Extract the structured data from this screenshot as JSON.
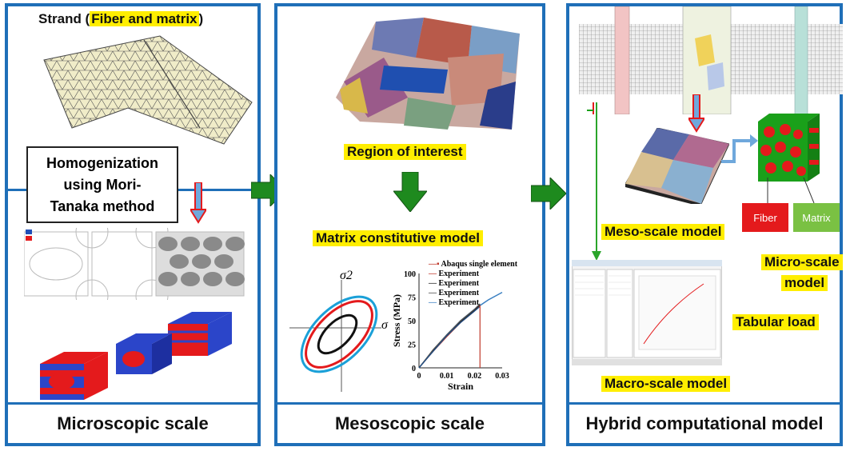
{
  "panels": {
    "left": {
      "footer": "Microscopic scale",
      "strand_prefix": "Strand (",
      "strand_highlight": "Fiber and matrix",
      "strand_suffix": ")",
      "homogenization": [
        "Homogenization",
        "using Mori-",
        "Tanaka method"
      ]
    },
    "middle": {
      "footer": "Mesoscopic scale",
      "region_label": "Region of interest",
      "matrix_label": "Matrix constitutive model"
    },
    "right": {
      "footer": "Hybrid computational model",
      "meso_label": "Meso-scale model",
      "micro_label_1": "Micro-scale",
      "micro_label_2": "model",
      "tabular_label": "Tabular load",
      "macro_label": "Macro-scale model",
      "fiber_label": "Fiber",
      "matrix_label": "Matrix"
    }
  },
  "yield_plot": {
    "y_axis": "σ2",
    "x_axis": "σ"
  },
  "chart_data": {
    "type": "line",
    "xlabel": "Strain",
    "ylabel": "Stress (MPa)",
    "xlim": [
      0,
      0.03
    ],
    "ylim": [
      0,
      100
    ],
    "x_ticks": [
      "0",
      "0.01",
      "0.02",
      "0.03"
    ],
    "y_ticks": [
      "0",
      "25",
      "50",
      "75",
      "100"
    ],
    "series": [
      {
        "name": "Abaqus single element",
        "x": [
          0,
          0.005,
          0.01,
          0.015,
          0.02,
          0.025,
          0.03
        ],
        "y": [
          0,
          18,
          35,
          50,
          62,
          72,
          80
        ]
      },
      {
        "name": "Experiment",
        "x": [
          0,
          0.005,
          0.01,
          0.015,
          0.02,
          0.022
        ],
        "y": [
          0,
          17,
          33,
          48,
          60,
          66
        ]
      },
      {
        "name": "Experiment",
        "x": [
          0,
          0.005,
          0.01,
          0.015,
          0.02,
          0.022
        ],
        "y": [
          0,
          18,
          34,
          49,
          61,
          67
        ]
      },
      {
        "name": "Experiment",
        "x": [
          0,
          0.005,
          0.01,
          0.015,
          0.02,
          0.022
        ],
        "y": [
          0,
          19,
          35,
          50,
          62,
          68
        ]
      },
      {
        "name": "Experiment",
        "x": [
          0,
          0.005,
          0.01,
          0.015,
          0.02,
          0.022
        ],
        "y": [
          0,
          17,
          34,
          48,
          60,
          65
        ]
      }
    ],
    "annotation": {
      "x": 0.022
    }
  },
  "colors": {
    "frame": "#1f6fb8",
    "highlight": "#ffee00",
    "arrow_green": "#1e8a1e",
    "fiber_red": "#e41a1c",
    "matrix_green": "#7ac143"
  }
}
